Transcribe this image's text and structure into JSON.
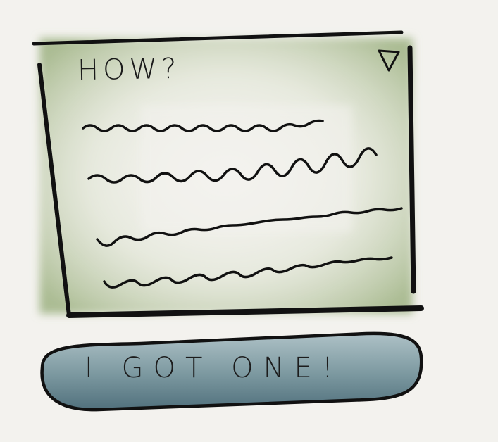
{
  "card": {
    "title": "HOW?",
    "dropdown_icon": "triangle-down-icon",
    "content_lines": 4
  },
  "action": {
    "label": "I GOT ONE!"
  },
  "colors": {
    "background": "#f3f2ee",
    "card_wash": "#a7b98e",
    "button_wash": "#5f7f89",
    "ink": "#111111"
  }
}
